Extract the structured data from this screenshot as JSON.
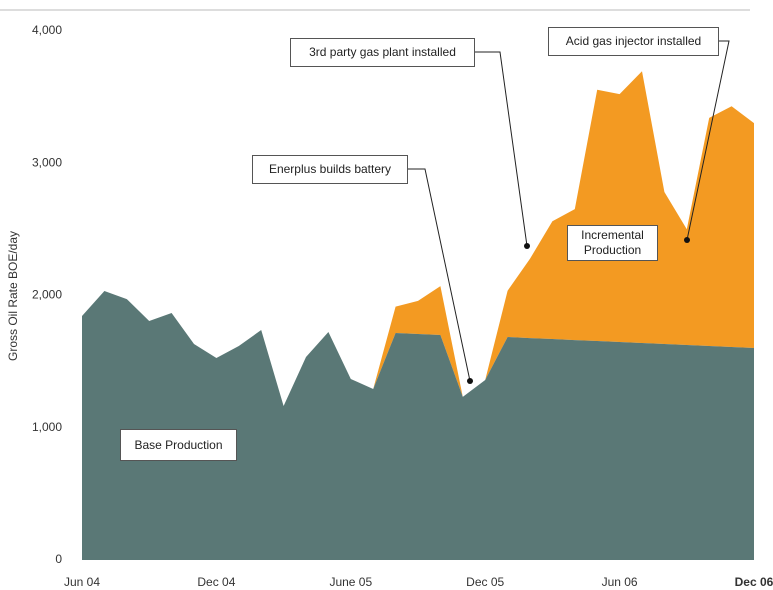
{
  "chart_data": {
    "type": "stacked_area",
    "y_label": "Gross Oil Rate BOE/day",
    "categories": [
      "Jun 04",
      null,
      null,
      null,
      null,
      null,
      "Dec 04",
      null,
      null,
      null,
      null,
      null,
      "June 05",
      null,
      null,
      null,
      null,
      null,
      "Dec 05",
      null,
      null,
      null,
      null,
      null,
      "Jun 06",
      null,
      null,
      null,
      null,
      null,
      "Dec 06"
    ],
    "series": [
      {
        "name": "Base Production",
        "color": "#5a7876",
        "values": [
          1845,
          2034,
          1973,
          1807,
          1868,
          1633,
          1527,
          1618,
          1739,
          1164,
          1535,
          1724,
          1369,
          1293,
          1716,
          1709,
          1701,
          1233,
          1361,
          1686,
          1678,
          1671,
          1663,
          1656,
          1648,
          1641,
          1633,
          1626,
          1618,
          1611,
          1603
        ]
      },
      {
        "name": "Incremental Production",
        "color": "#f39a22",
        "values": [
          0,
          0,
          0,
          0,
          0,
          0,
          0,
          0,
          0,
          0,
          0,
          0,
          0,
          0,
          200,
          250,
          370,
          0,
          0,
          350,
          600,
          890,
          990,
          1900,
          1875,
          2055,
          1150,
          875,
          1725,
          1820,
          1700
        ]
      }
    ],
    "ylim": [
      0,
      4000
    ],
    "yticks": [
      0,
      {
        "value": 1000,
        "label": "1,000"
      },
      {
        "value": 2000,
        "label": "2,000"
      },
      {
        "value": 3000,
        "label": "3,000"
      },
      {
        "value": 4000,
        "label": "4,000"
      }
    ],
    "annotations": [
      {
        "text": "Enerplus builds battery"
      },
      {
        "text": "3rd party gas plant installed"
      },
      {
        "text": "Acid gas injector installed"
      }
    ]
  }
}
